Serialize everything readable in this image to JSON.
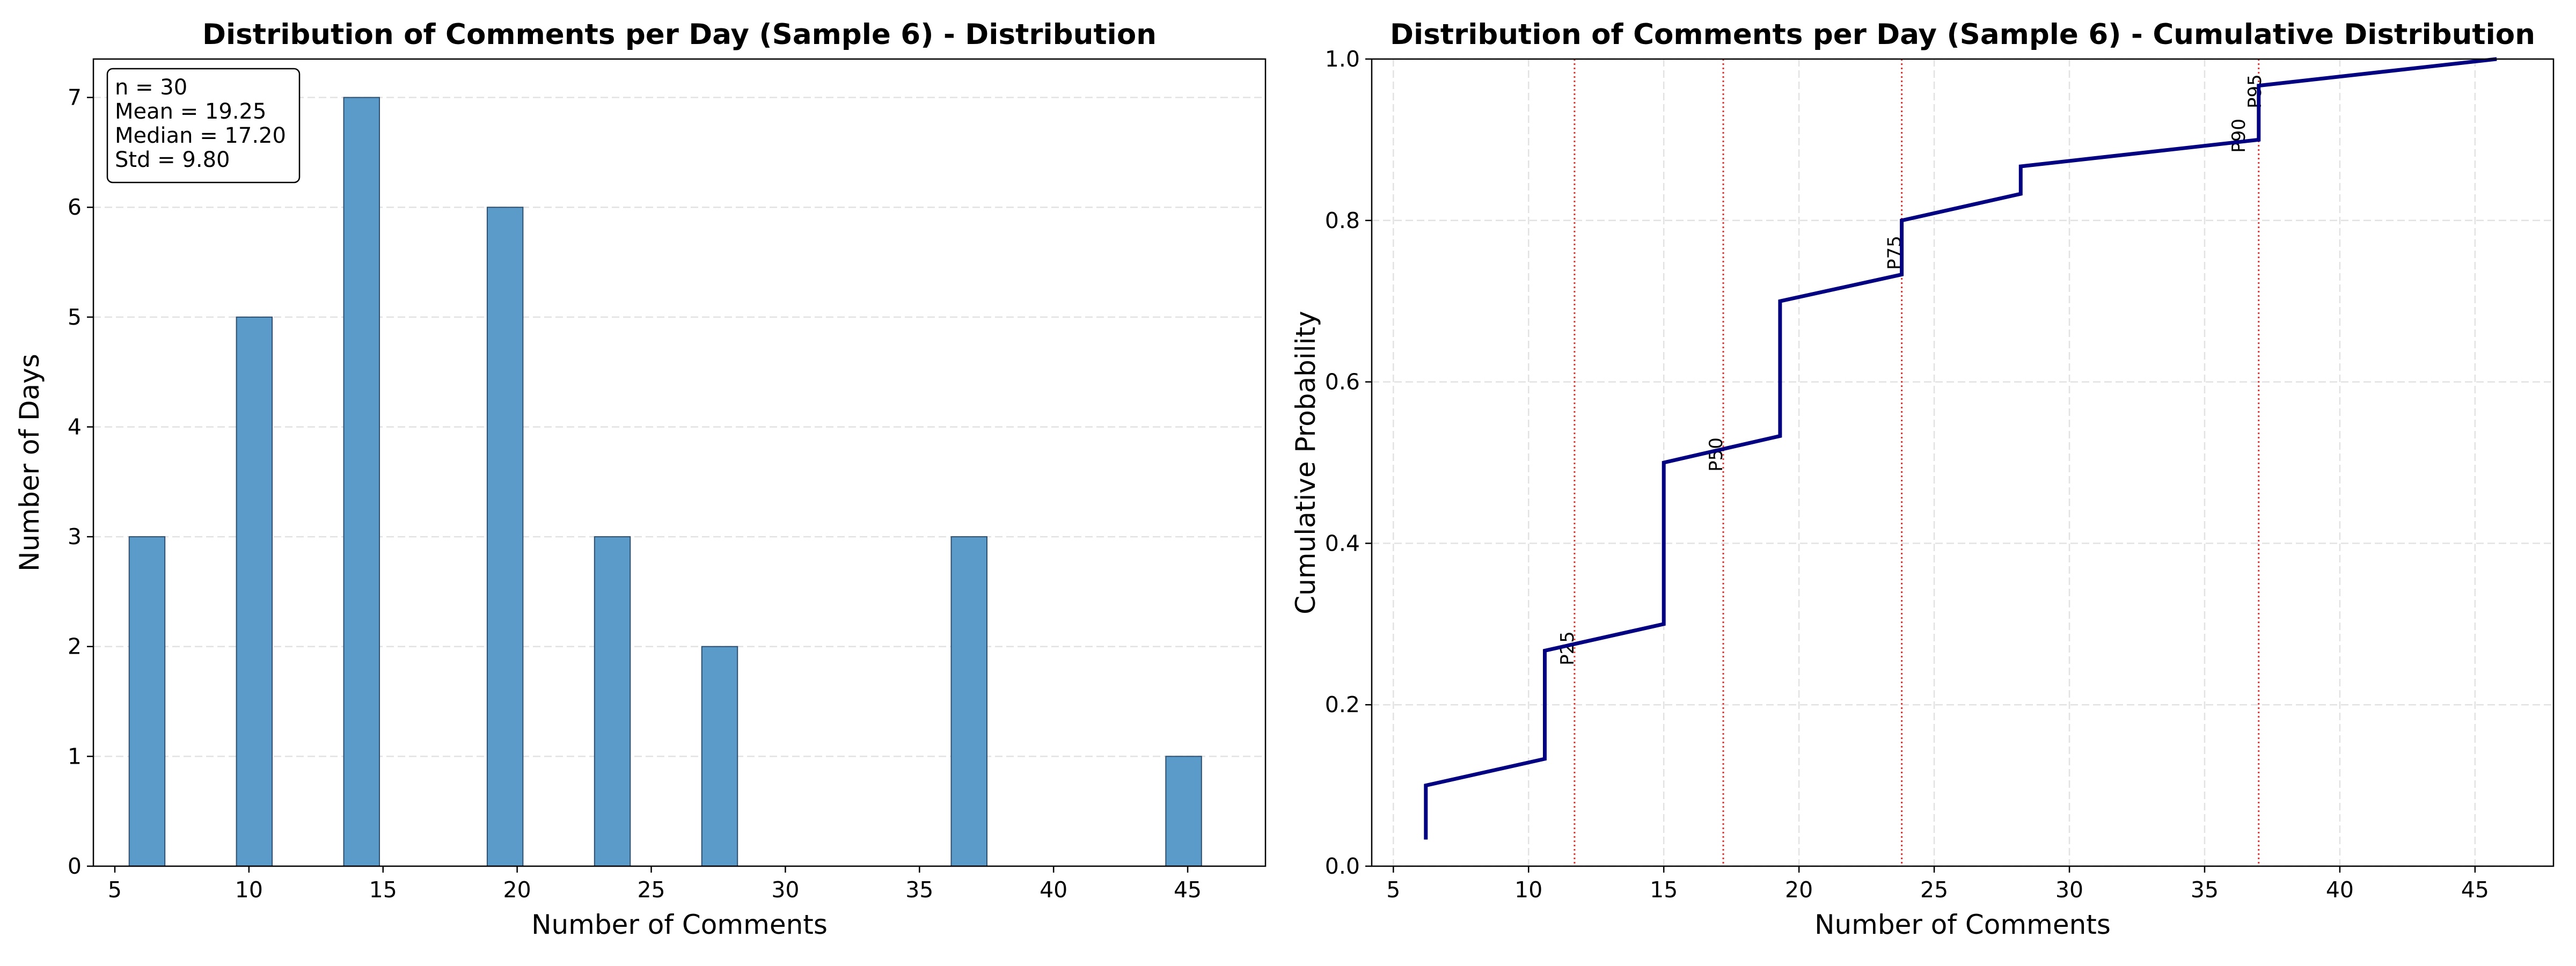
{
  "chart_data": [
    {
      "type": "bar",
      "title": "Distribution of Comments per Day (Sample 6) - Distribution",
      "xlabel": "Number of Comments",
      "ylabel": "Number of Days",
      "xlim": [
        4.2,
        47.9
      ],
      "ylim": [
        0,
        7.35
      ],
      "xticks": [
        5,
        10,
        15,
        20,
        25,
        30,
        35,
        40,
        45
      ],
      "yticks": [
        0,
        1,
        2,
        3,
        4,
        5,
        6,
        7
      ],
      "grid": "y-dashed",
      "bar_color": "#5b9bc9",
      "bin_width": 1.33,
      "bars": [
        {
          "x": 6.2,
          "count": 3
        },
        {
          "x": 10.2,
          "count": 5
        },
        {
          "x": 14.2,
          "count": 7
        },
        {
          "x": 19.55,
          "count": 6
        },
        {
          "x": 23.55,
          "count": 3
        },
        {
          "x": 27.55,
          "count": 2
        },
        {
          "x": 36.85,
          "count": 3
        },
        {
          "x": 44.85,
          "count": 1
        }
      ],
      "stats_box": {
        "position": "top-left",
        "lines": [
          "n = 30",
          "Mean = 19.25",
          "Median = 17.20",
          "Std = 9.80"
        ]
      }
    },
    {
      "type": "line",
      "title": "Distribution of Comments per Day (Sample 6) - Cumulative Distribution",
      "xlabel": "Number of Comments",
      "ylabel": "Cumulative Probability",
      "xlim": [
        4.2,
        47.9
      ],
      "ylim": [
        0,
        1
      ],
      "xticks": [
        5,
        10,
        15,
        20,
        25,
        30,
        35,
        40,
        45
      ],
      "yticks": [
        "0.0",
        "0.2",
        "0.4",
        "0.6",
        "0.8",
        "1.0"
      ],
      "grid": "both-dashed",
      "line_color": "#000080",
      "cdf_points": [
        [
          6.2,
          0.033
        ],
        [
          6.2,
          0.1
        ],
        [
          10.6,
          0.133
        ],
        [
          10.6,
          0.267
        ],
        [
          15.0,
          0.3
        ],
        [
          15.0,
          0.5
        ],
        [
          19.3,
          0.533
        ],
        [
          19.3,
          0.7
        ],
        [
          23.8,
          0.733
        ],
        [
          23.8,
          0.8
        ],
        [
          28.2,
          0.833
        ],
        [
          28.2,
          0.867
        ],
        [
          37.0,
          0.9
        ],
        [
          37.0,
          0.967
        ],
        [
          45.8,
          1.0
        ]
      ],
      "percentile_color": "#e03030",
      "percentiles": [
        {
          "label": "P25",
          "x": 11.7
        },
        {
          "label": "P50",
          "x": 17.2
        },
        {
          "label": "P75",
          "x": 23.8
        },
        {
          "label": "P90",
          "x": 37.0
        },
        {
          "label": "P95",
          "x": 37.0
        }
      ]
    }
  ]
}
